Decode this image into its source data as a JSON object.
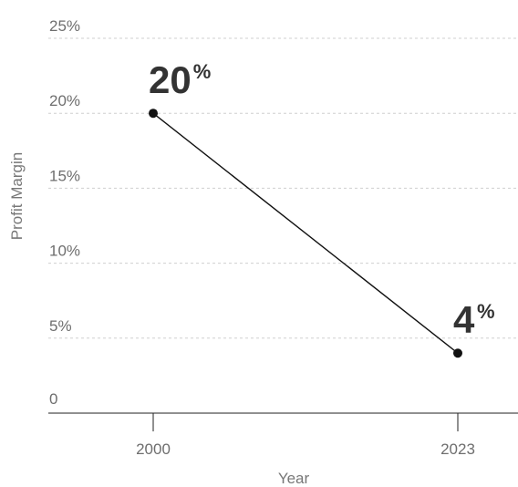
{
  "chart_data": {
    "type": "line",
    "title": "",
    "xlabel": "Year",
    "ylabel": "Profit Margin",
    "categories": [
      "2000",
      "2023"
    ],
    "series": [
      {
        "values": [
          20,
          4
        ]
      }
    ],
    "ylim": [
      0,
      25
    ],
    "yticks": [
      0,
      5,
      10,
      15,
      20,
      25
    ],
    "ytick_labels": [
      "0",
      "5%",
      "10%",
      "15%",
      "20%",
      "25%"
    ],
    "data_labels": [
      {
        "value": "20",
        "unit": "%"
      },
      {
        "value": "4",
        "unit": "%"
      }
    ],
    "grid": true,
    "legend": "none",
    "colors": {
      "line": "#111111",
      "grid": "#cfcfcf",
      "text": "#6e6e6e",
      "label": "#333333"
    }
  }
}
